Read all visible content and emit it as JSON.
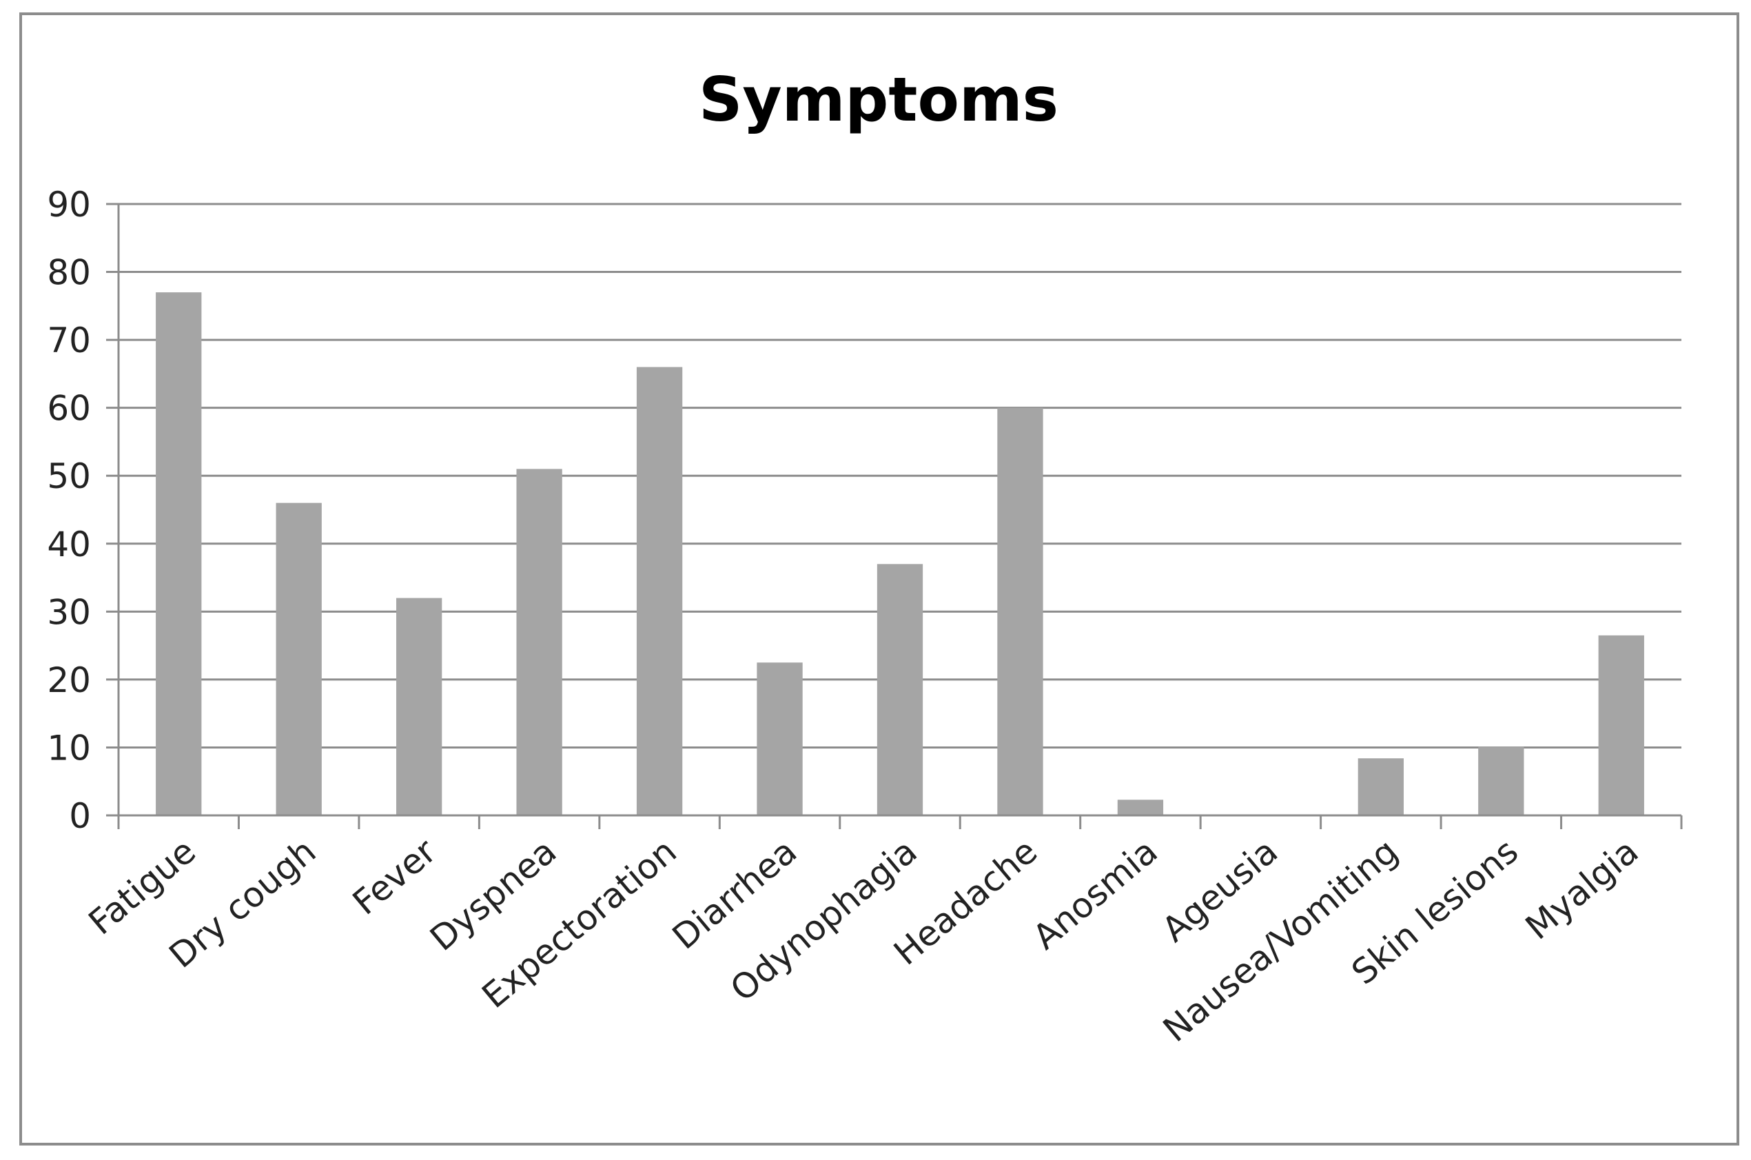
{
  "chart_data": {
    "type": "bar",
    "title": "Symptoms",
    "xlabel": "",
    "ylabel": "",
    "ylim": [
      0,
      90
    ],
    "yticks": [
      0,
      10,
      20,
      30,
      40,
      50,
      60,
      70,
      80,
      90
    ],
    "categories": [
      "Fatigue",
      "Dry cough",
      "Fever",
      "Dyspnea",
      "Expectoration",
      "Diarrhea",
      "Odynophagia",
      "Headache",
      "Anosmia",
      "Ageusia",
      "Nausea/Vomiting",
      "Skin lesions",
      "Myalgia"
    ],
    "values": [
      77,
      46,
      32,
      51,
      66,
      22.5,
      37,
      60,
      2.3,
      0,
      8.4,
      10.1,
      26.5
    ],
    "grid": true,
    "legend": "none",
    "colors": {
      "bar": "#a5a5a5",
      "gridline": "#8c8c8c",
      "axis": "#8c8c8c",
      "frame": "#8c8c8c",
      "text": "#222222"
    }
  }
}
